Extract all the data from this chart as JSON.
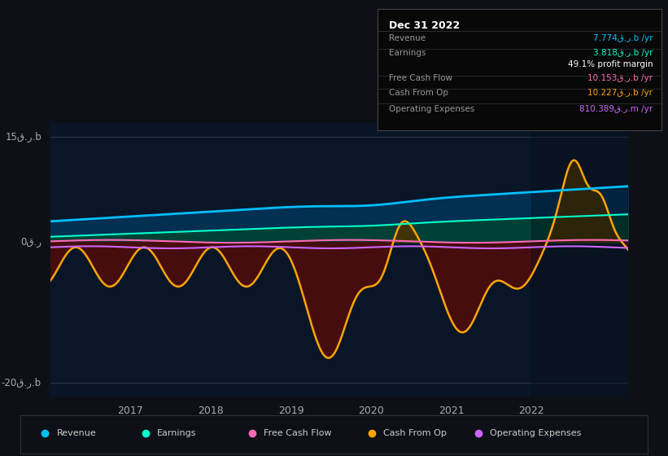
{
  "bg_color": "#0d1117",
  "plot_bg": "#0a1628",
  "ylim": [
    -22,
    17
  ],
  "xlim_start": 2016.0,
  "xlim_end": 2023.2,
  "xticks": [
    2017,
    2018,
    2019,
    2020,
    2021,
    2022
  ],
  "y_label_top": "15ق.ر.b",
  "y_label_mid": "0ق.ر",
  "y_label_bot": "-20ق.ر.b",
  "revenue_color": "#00bfff",
  "earnings_color": "#00ffcc",
  "fcf_color": "#ff69b4",
  "cashop_color": "#ffa500",
  "opex_color": "#cc66ff",
  "info_box": {
    "title": "Dec 31 2022",
    "rows": [
      {
        "label": "Revenue",
        "value": "7.774ق.ر.b /yr",
        "color": "#00bfff"
      },
      {
        "label": "Earnings",
        "value": "3.818ق.ر.b /yr",
        "color": "#00ffcc"
      },
      {
        "label": "",
        "value": "49.1% profit margin",
        "color": "#ffffff"
      },
      {
        "label": "Free Cash Flow",
        "value": "10.153ق.ر.b /yr",
        "color": "#ff69b4"
      },
      {
        "label": "Cash From Op",
        "value": "10.227ق.ر.b /yr",
        "color": "#ffa500"
      },
      {
        "label": "Operating Expenses",
        "value": "810.389ق.ر.m /yr",
        "color": "#cc66ff"
      }
    ]
  },
  "legend_items": [
    {
      "label": "Revenue",
      "color": "#00bfff"
    },
    {
      "label": "Earnings",
      "color": "#00ffcc"
    },
    {
      "label": "Free Cash Flow",
      "color": "#ff69b4"
    },
    {
      "label": "Cash From Op",
      "color": "#ffa500"
    },
    {
      "label": "Operating Expenses",
      "color": "#cc66ff"
    }
  ]
}
